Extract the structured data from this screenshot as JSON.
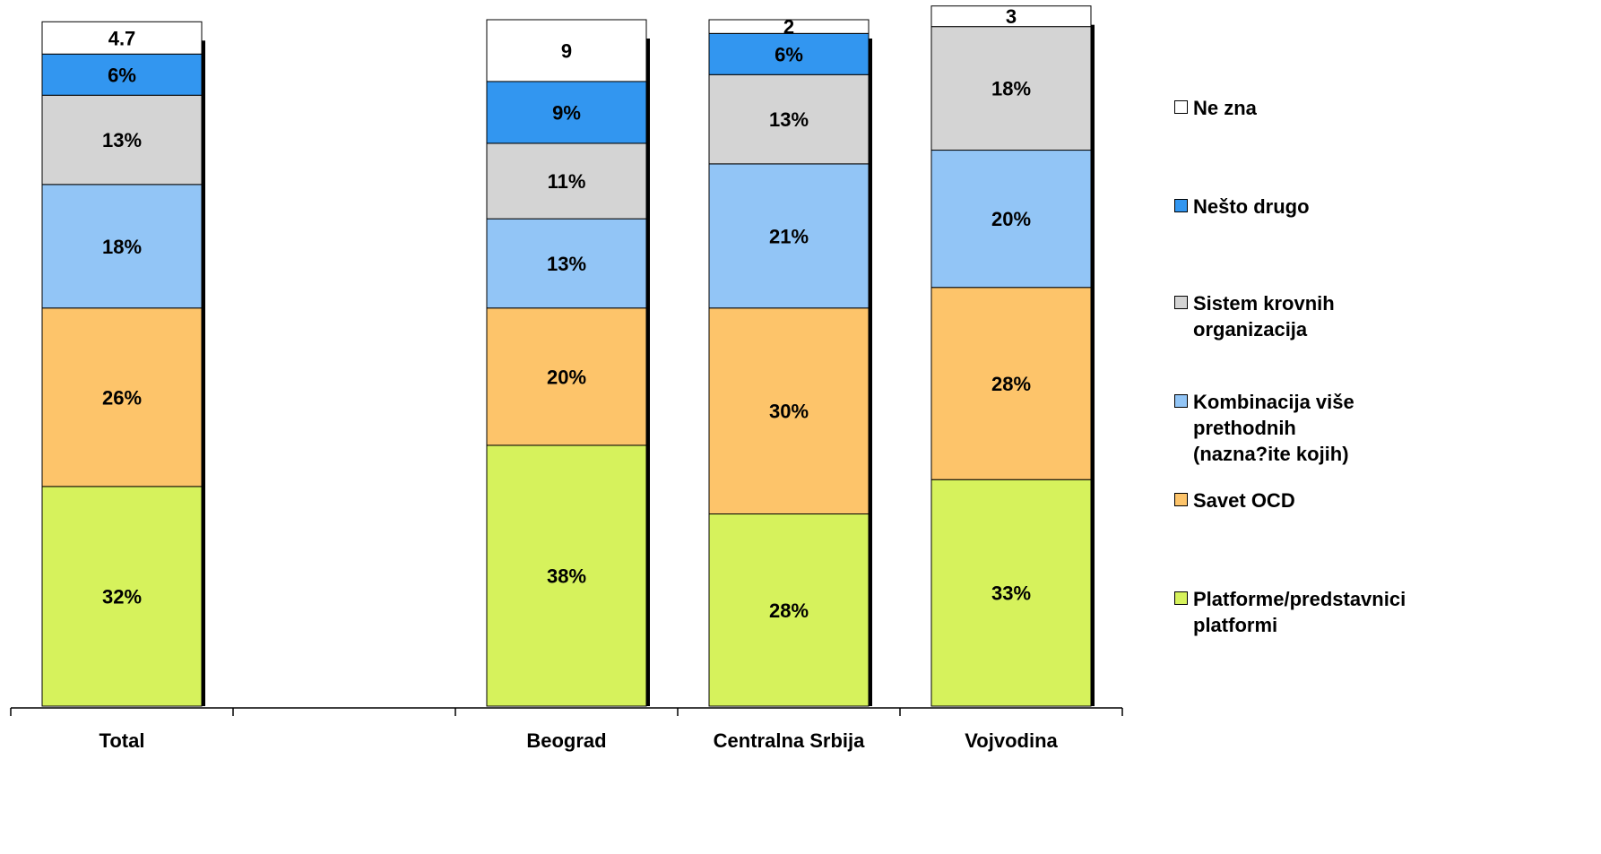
{
  "chart_data": {
    "type": "bar",
    "stacked": true,
    "categories": [
      "Total",
      "",
      "Beograd",
      "Centralna Srbija",
      "Vojvodina"
    ],
    "series": [
      {
        "name": "Platforme/predstavnici platformi",
        "color": "#d6f25c",
        "values": [
          32,
          null,
          38,
          28,
          33
        ],
        "labels": [
          "32%",
          "",
          "38%",
          "28%",
          "33%"
        ]
      },
      {
        "name": "Savet OCD",
        "color": "#fdc46a",
        "values": [
          26,
          null,
          20,
          30,
          28
        ],
        "labels": [
          "26%",
          "",
          "20%",
          "30%",
          "28%"
        ]
      },
      {
        "name": "Kombinacija više prethodnih (nazna?ite kojih)",
        "color": "#92c5f6",
        "values": [
          18,
          null,
          13,
          21,
          20
        ],
        "labels": [
          "18%",
          "",
          "13%",
          "21%",
          "20%"
        ]
      },
      {
        "name": "Sistem krovnih organizacija",
        "color": "#d4d4d4",
        "values": [
          13,
          null,
          11,
          13,
          18
        ],
        "labels": [
          "13%",
          "",
          "11%",
          "13%",
          "18%"
        ]
      },
      {
        "name": "Nešto drugo",
        "color": "#3296f0",
        "values": [
          6,
          null,
          9,
          6,
          0
        ],
        "labels": [
          "6%",
          "",
          "9%",
          "6%",
          ""
        ]
      },
      {
        "name": "Ne zna",
        "color": "#ffffff",
        "values": [
          4.7,
          null,
          9,
          2,
          3
        ],
        "labels": [
          "4.7",
          "",
          "9",
          "2",
          "3"
        ]
      }
    ],
    "legend_position": "right",
    "legend_order": [
      "Ne zna",
      "Nešto drugo",
      "Sistem krovnih organizacija",
      "Kombinacija više prethodnih (nazna?ite kojih)",
      "Savet OCD",
      "Platforme/predstavnici platformi"
    ],
    "ylim": [
      0,
      100
    ],
    "grid": false
  }
}
